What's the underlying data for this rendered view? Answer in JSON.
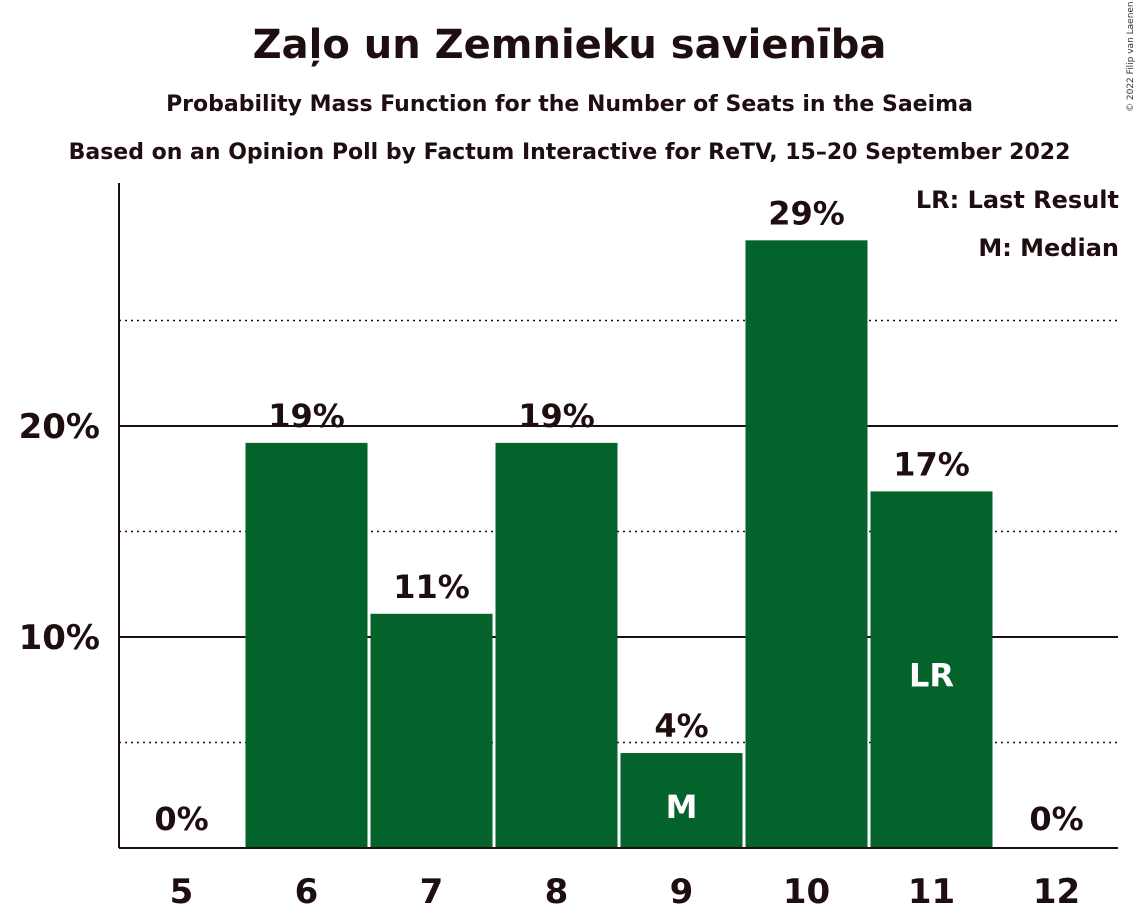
{
  "chart_data": {
    "type": "bar",
    "title": "Zaļo un Zemnieku savienība",
    "subtitle": "Probability Mass Function for the Number of Seats in the Saeima",
    "subtitle2": "Based on an Opinion Poll by Factum Interactive for ReTV, 15–20 September 2022",
    "copyright": "© 2022 Filip van Laenen",
    "categories": [
      "5",
      "6",
      "7",
      "8",
      "9",
      "10",
      "11",
      "12"
    ],
    "values": [
      0,
      19.2,
      11.1,
      19.2,
      4.5,
      28.8,
      16.9,
      0
    ],
    "value_labels": [
      "0%",
      "19%",
      "11%",
      "19%",
      "4%",
      "29%",
      "17%",
      "0%"
    ],
    "bar_markers": [
      "",
      "",
      "",
      "",
      "M",
      "",
      "LR",
      ""
    ],
    "ylim": [
      0,
      31.5
    ],
    "yticks": [
      10,
      20
    ],
    "ytick_labels": [
      "10%",
      "20%"
    ],
    "minor_gridlines": [
      5,
      15,
      25
    ],
    "legend": [
      "LR: Last Result",
      "M: Median"
    ],
    "legend_position": "top-right",
    "bar_color": "#03632a"
  }
}
